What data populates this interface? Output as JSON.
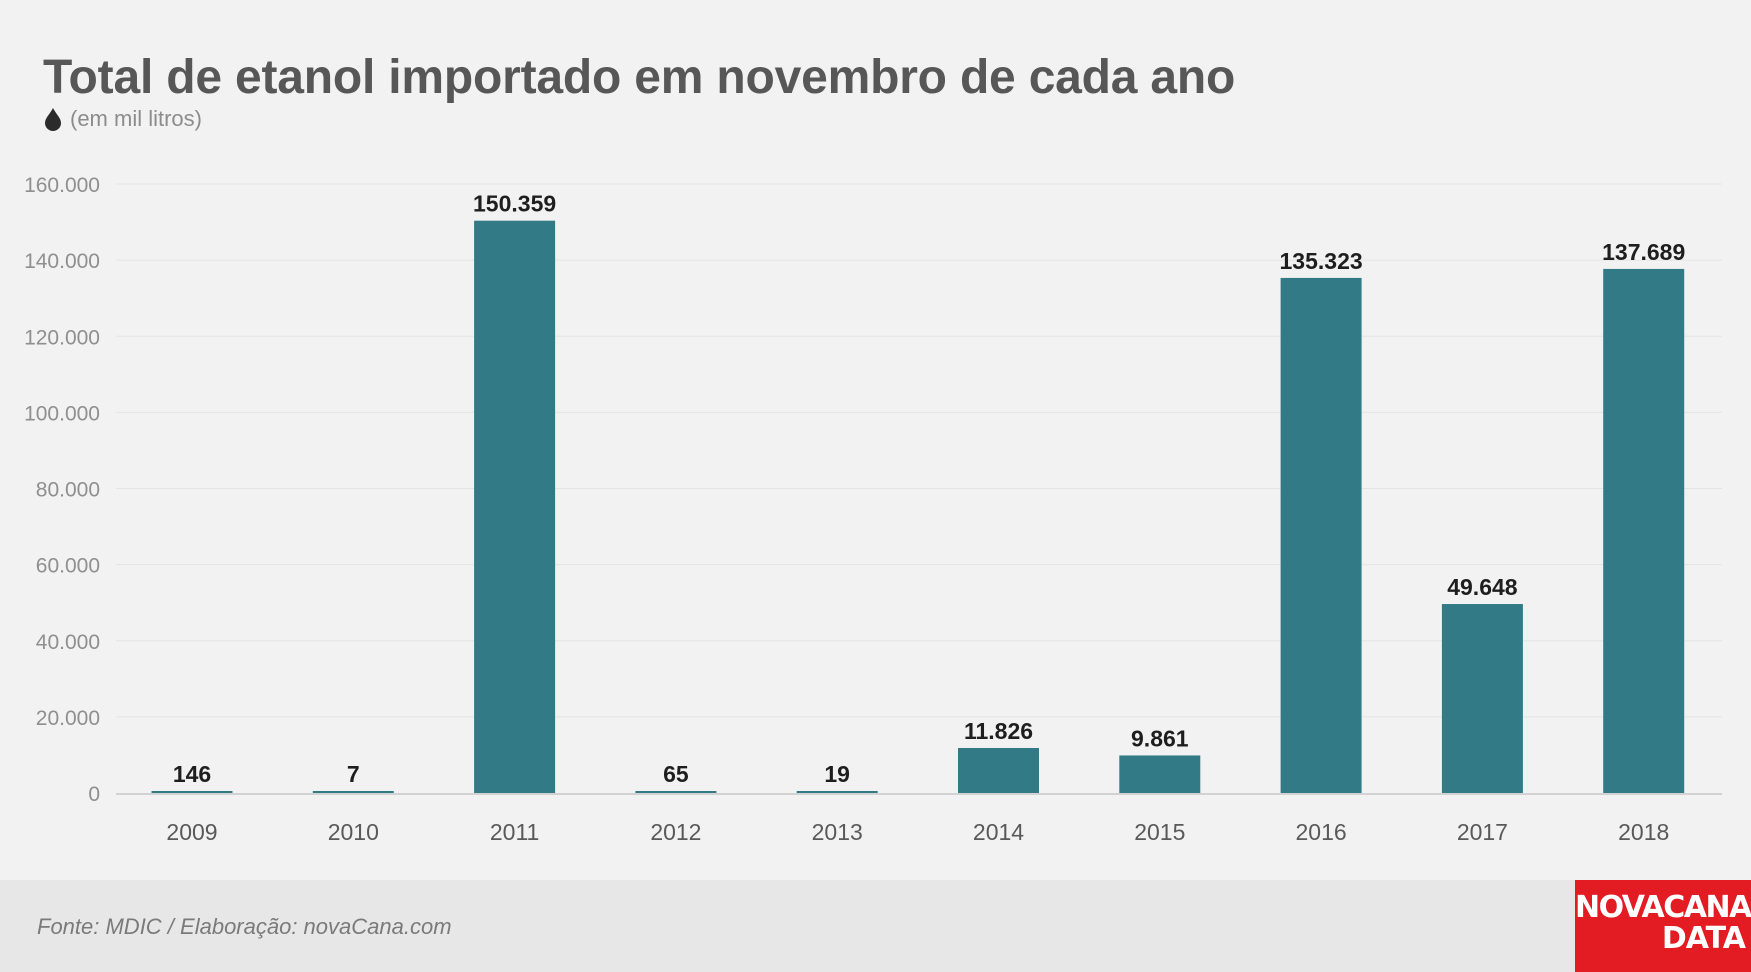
{
  "header": {
    "title": "Total de etanol importado em novembro de cada ano",
    "subtitle": "(em mil litros)",
    "icon": "water-drop-icon"
  },
  "footer": {
    "source": "Fonte: MDIC / Elaboração: novaCana.com",
    "logo_line1": "NOVACANA",
    "logo_line2": "DATA"
  },
  "colors": {
    "bar": "#337a87",
    "background": "#f2f2f2",
    "footer": "#e7e7e7",
    "logo": "#e31b23",
    "title": "#575757"
  },
  "chart_data": {
    "type": "bar",
    "title": "Total de etanol importado em novembro de cada ano",
    "subtitle": "(em mil litros)",
    "xlabel": "",
    "ylabel": "",
    "categories": [
      "2009",
      "2010",
      "2011",
      "2012",
      "2013",
      "2014",
      "2015",
      "2016",
      "2017",
      "2018"
    ],
    "values": [
      146,
      7,
      150359,
      65,
      19,
      11826,
      9861,
      135323,
      49648,
      137689
    ],
    "value_labels": [
      "146",
      "7",
      "150.359",
      "65",
      "19",
      "11.826",
      "9.861",
      "135.323",
      "49.648",
      "137.689"
    ],
    "ylim": [
      0,
      160000
    ],
    "yticks": [
      0,
      20000,
      40000,
      60000,
      80000,
      100000,
      120000,
      140000,
      160000
    ],
    "ytick_labels": [
      "0",
      "20.000",
      "40.000",
      "60.000",
      "80.000",
      "100.000",
      "120.000",
      "140.000",
      "160.000"
    ],
    "grid": true,
    "legend": "none"
  }
}
